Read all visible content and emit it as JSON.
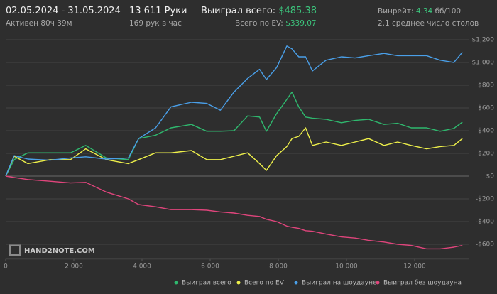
{
  "header": {
    "date_range": "02.05.2024 - 31.05.2024",
    "active_time": "Активен 80ч 39м",
    "hands": "13 611 Руки",
    "hands_per_hour": "169 рук в час",
    "won_total_label": "Выиграл всего:",
    "won_total_value": "$485.38",
    "ev_total_label": "Всего по EV:",
    "ev_total_value": "$339.07",
    "winrate_label": "Винрейт:",
    "winrate_value": "4.34",
    "winrate_unit": "бб/100",
    "avg_tables": "2.1 среднее число столов",
    "watermark": "HAND2NOTE.COM"
  },
  "chart_data": {
    "type": "line",
    "x": [
      0,
      250,
      650,
      1300,
      1900,
      2350,
      2950,
      3600,
      3900,
      4400,
      4850,
      5450,
      5900,
      6300,
      6700,
      7100,
      7450,
      7650,
      7950,
      8250,
      8400,
      8600,
      8800,
      9000,
      9400,
      9850,
      10250,
      10650,
      11100,
      11500,
      11900,
      12350,
      12750,
      13150,
      13400
    ],
    "series": [
      {
        "name": "Выиграл всего",
        "color": "#2fb86e",
        "values": [
          0,
          145,
          205,
          205,
          205,
          270,
          160,
          145,
          330,
          360,
          425,
          455,
          395,
          395,
          400,
          530,
          520,
          395,
          550,
          675,
          740,
          610,
          520,
          510,
          500,
          470,
          490,
          500,
          455,
          465,
          425,
          425,
          395,
          420,
          475
        ]
      },
      {
        "name": "Всего по EV",
        "color": "#eef04a",
        "values": [
          0,
          175,
          110,
          145,
          145,
          240,
          145,
          110,
          145,
          205,
          205,
          225,
          145,
          145,
          175,
          205,
          110,
          50,
          180,
          260,
          330,
          350,
          425,
          270,
          300,
          270,
          300,
          330,
          270,
          300,
          270,
          240,
          260,
          270,
          330
        ]
      },
      {
        "name": "Выиграл на шоудауне",
        "color": "#4a9fe8",
        "values": [
          0,
          180,
          150,
          140,
          160,
          170,
          150,
          160,
          330,
          425,
          610,
          650,
          640,
          580,
          740,
          860,
          940,
          850,
          955,
          1145,
          1120,
          1050,
          1050,
          925,
          1020,
          1050,
          1040,
          1060,
          1080,
          1060,
          1060,
          1060,
          1020,
          1000,
          1090
        ]
      },
      {
        "name": "Выиграл без шоудауна",
        "color": "#e0457c",
        "values": [
          0,
          -12,
          -30,
          -45,
          -60,
          -55,
          -140,
          -200,
          -250,
          -270,
          -295,
          -295,
          -300,
          -315,
          -325,
          -345,
          -355,
          -380,
          -400,
          -440,
          -450,
          -460,
          -480,
          -485,
          -510,
          -535,
          -545,
          -565,
          -580,
          -600,
          -610,
          -640,
          -640,
          -625,
          -610
        ]
      }
    ],
    "xlim": [
      0,
      13600
    ],
    "ylim": [
      -730,
      1250
    ],
    "xticks": [
      0,
      {
        "value": 2000,
        "label": "2 000"
      },
      {
        "value": 4000,
        "label": "4 000"
      },
      {
        "value": 6000,
        "label": "6 000"
      },
      {
        "value": 8000,
        "label": "8 000"
      },
      {
        "value": 10000,
        "label": "10 000"
      },
      {
        "value": 12000,
        "label": "12 000"
      }
    ],
    "yticks": [
      {
        "value": -600,
        "label": "-$600"
      },
      {
        "value": -400,
        "label": "-$400"
      },
      {
        "value": -200,
        "label": "-$200"
      },
      {
        "value": 0,
        "label": "$0"
      },
      {
        "value": 200,
        "label": "$200"
      },
      {
        "value": 400,
        "label": "$400"
      },
      {
        "value": 600,
        "label": "$600"
      },
      {
        "value": 800,
        "label": "$800"
      },
      {
        "value": 1000,
        "label": "$1,000"
      },
      {
        "value": 1200,
        "label": "$1,200"
      }
    ],
    "grid": true,
    "legend": "bottom-right"
  }
}
